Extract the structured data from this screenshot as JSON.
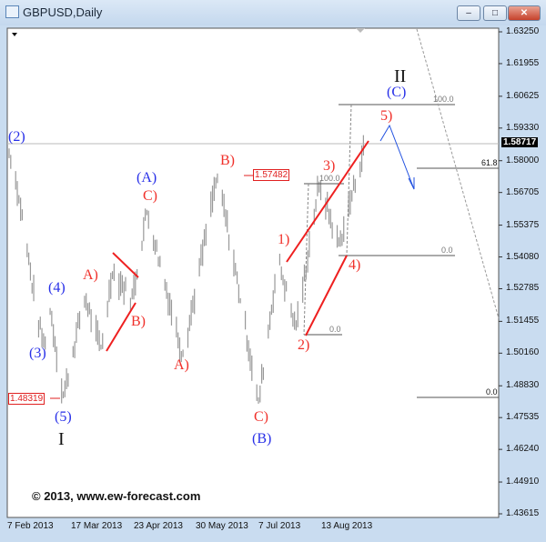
{
  "window": {
    "title": "GBPUSD,Daily",
    "minimize": "–",
    "restore": "□",
    "close": "✕"
  },
  "chart_data": {
    "type": "bar",
    "symbol": "GBPUSD",
    "timeframe": "Daily",
    "current_price": "1.58717",
    "y_ticks": [
      "1.63250",
      "1.61955",
      "1.60625",
      "1.59330",
      "1.58000",
      "1.56705",
      "1.55375",
      "1.54080",
      "1.52785",
      "1.51455",
      "1.50160",
      "1.48830",
      "1.47535",
      "1.46240",
      "1.44910",
      "1.43615"
    ],
    "ylim": [
      1.43615,
      1.6325
    ],
    "x_ticks": [
      "7 Feb 2013",
      "17 Mar 2013",
      "23 Apr 2013",
      "30 May 2013",
      "7 Jul 2013",
      "13 Aug 2013"
    ],
    "swing_points": [
      [
        "2013-02-07",
        1.585
      ],
      [
        "2013-02-13",
        1.566
      ],
      [
        "2013-02-24",
        1.5165
      ],
      [
        "2013-03-01",
        1.503
      ],
      [
        "2013-03-04",
        1.52
      ],
      [
        "2013-03-12",
        1.4832
      ],
      [
        "2013-03-25",
        1.525
      ],
      [
        "2013-04-04",
        1.503
      ],
      [
        "2013-04-11",
        1.535
      ],
      [
        "2013-04-23",
        1.5235
      ],
      [
        "2013-05-02",
        1.56
      ],
      [
        "2013-05-24",
        1.5
      ],
      [
        "2013-06-14",
        1.5748
      ],
      [
        "2013-06-28",
        1.524
      ],
      [
        "2013-07-09",
        1.481
      ],
      [
        "2013-07-21",
        1.54
      ],
      [
        "2013-08-01",
        1.5108
      ],
      [
        "2013-08-15",
        1.5715
      ],
      [
        "2013-08-27",
        1.545
      ],
      [
        "2013-09-12",
        1.587
      ]
    ],
    "price_boxes": [
      "1.57482",
      "1.48319"
    ],
    "fib_levels": [
      "100.0",
      "0.0",
      "100.0",
      "0.0",
      "61.8",
      "0.0"
    ],
    "wave_labels": {
      "blue": [
        "(2)",
        "(3)",
        "(4)",
        "(5)",
        "(A)",
        "(B)",
        "(C)"
      ],
      "red": [
        "A)",
        "B)",
        "C)",
        "A)",
        "B)",
        "C)",
        "1)",
        "2)",
        "3)",
        "4)",
        "5)"
      ],
      "black": [
        "I",
        "II"
      ]
    },
    "colors": {
      "bars": "#999999",
      "trendlines": "#ee2020",
      "wave_red": "#f0302a",
      "wave_blue": "#2830e8",
      "projection": "#2050e0"
    }
  },
  "watermark": "© 2013, www.ew-forecast.com"
}
